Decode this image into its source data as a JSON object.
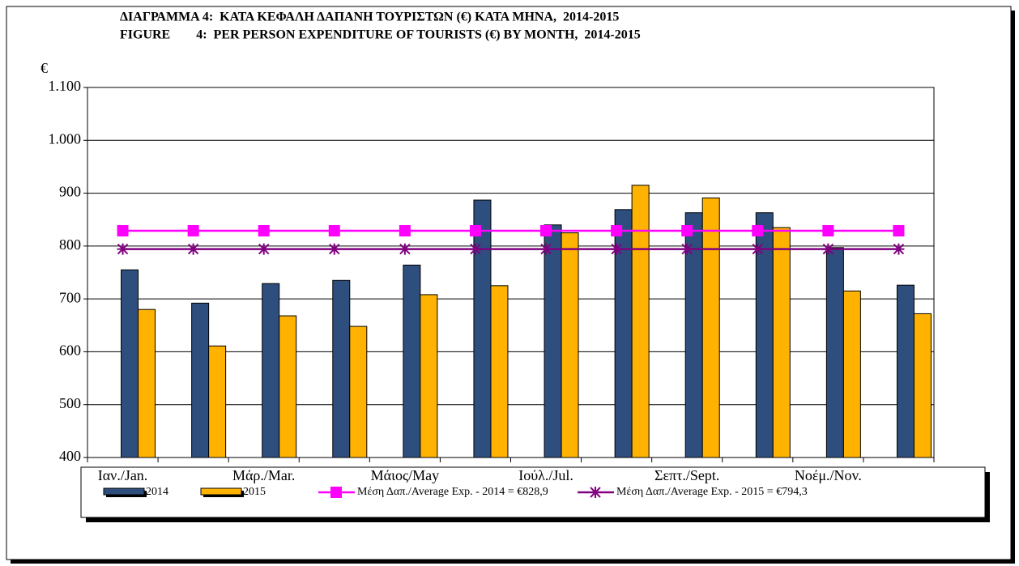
{
  "chart_data": {
    "type": "bar",
    "title": "ΔΙΑΓΡΑΜΜΑ 4:  ΚΑΤΑ ΚΕΦΑΛΗ ΔΑΠΑΝΗ ΤΟΥΡΙΣΤΩΝ (€) ΚΑΤΑ ΜΗΝΑ,  2014-2015",
    "subtitle": "FIGURE        4:  PER PERSON EXPENDITURE OF TOURISTS (€) BY MONTH,  2014-2015",
    "y_label": "€",
    "categories": [
      "Ιαν./Jan.",
      null,
      "Μάρ./Mar.",
      null,
      "Μάιος/May",
      null,
      "Ιούλ./Jul.",
      null,
      "Σεπτ./Sept.",
      null,
      "Νοέμ./Nov.",
      null
    ],
    "series": [
      {
        "name": "2014",
        "type": "bar",
        "color": "#2e4e7e",
        "values": [
          755,
          692,
          729,
          735,
          764,
          887,
          840,
          869,
          863,
          863,
          797,
          726
        ]
      },
      {
        "name": "2015",
        "type": "bar",
        "color": "#ffb300",
        "values": [
          680,
          611,
          668,
          648,
          708,
          725,
          825,
          915,
          891,
          835,
          715,
          672
        ]
      },
      {
        "name": "Μέση Δαπ./Average Exp. - 2014 = €828,9",
        "type": "line",
        "marker": "square",
        "color": "#ff00ff",
        "values": [
          828.9,
          828.9,
          828.9,
          828.9,
          828.9,
          828.9,
          828.9,
          828.9,
          828.9,
          828.9,
          828.9,
          828.9
        ]
      },
      {
        "name": "Μέση Δαπ./Average Exp. - 2015 = €794,3",
        "type": "line",
        "marker": "asterisk",
        "color": "#800080",
        "values": [
          794.3,
          794.3,
          794.3,
          794.3,
          794.3,
          794.3,
          794.3,
          794.3,
          794.3,
          794.3,
          794.3,
          794.3
        ]
      }
    ],
    "ylim": [
      400,
      1100
    ],
    "yticks": [
      400,
      500,
      600,
      700,
      800,
      900,
      {
        "value": 1000,
        "label": "1.000"
      },
      {
        "value": 1100,
        "label": "1.100"
      }
    ],
    "grid": true
  }
}
